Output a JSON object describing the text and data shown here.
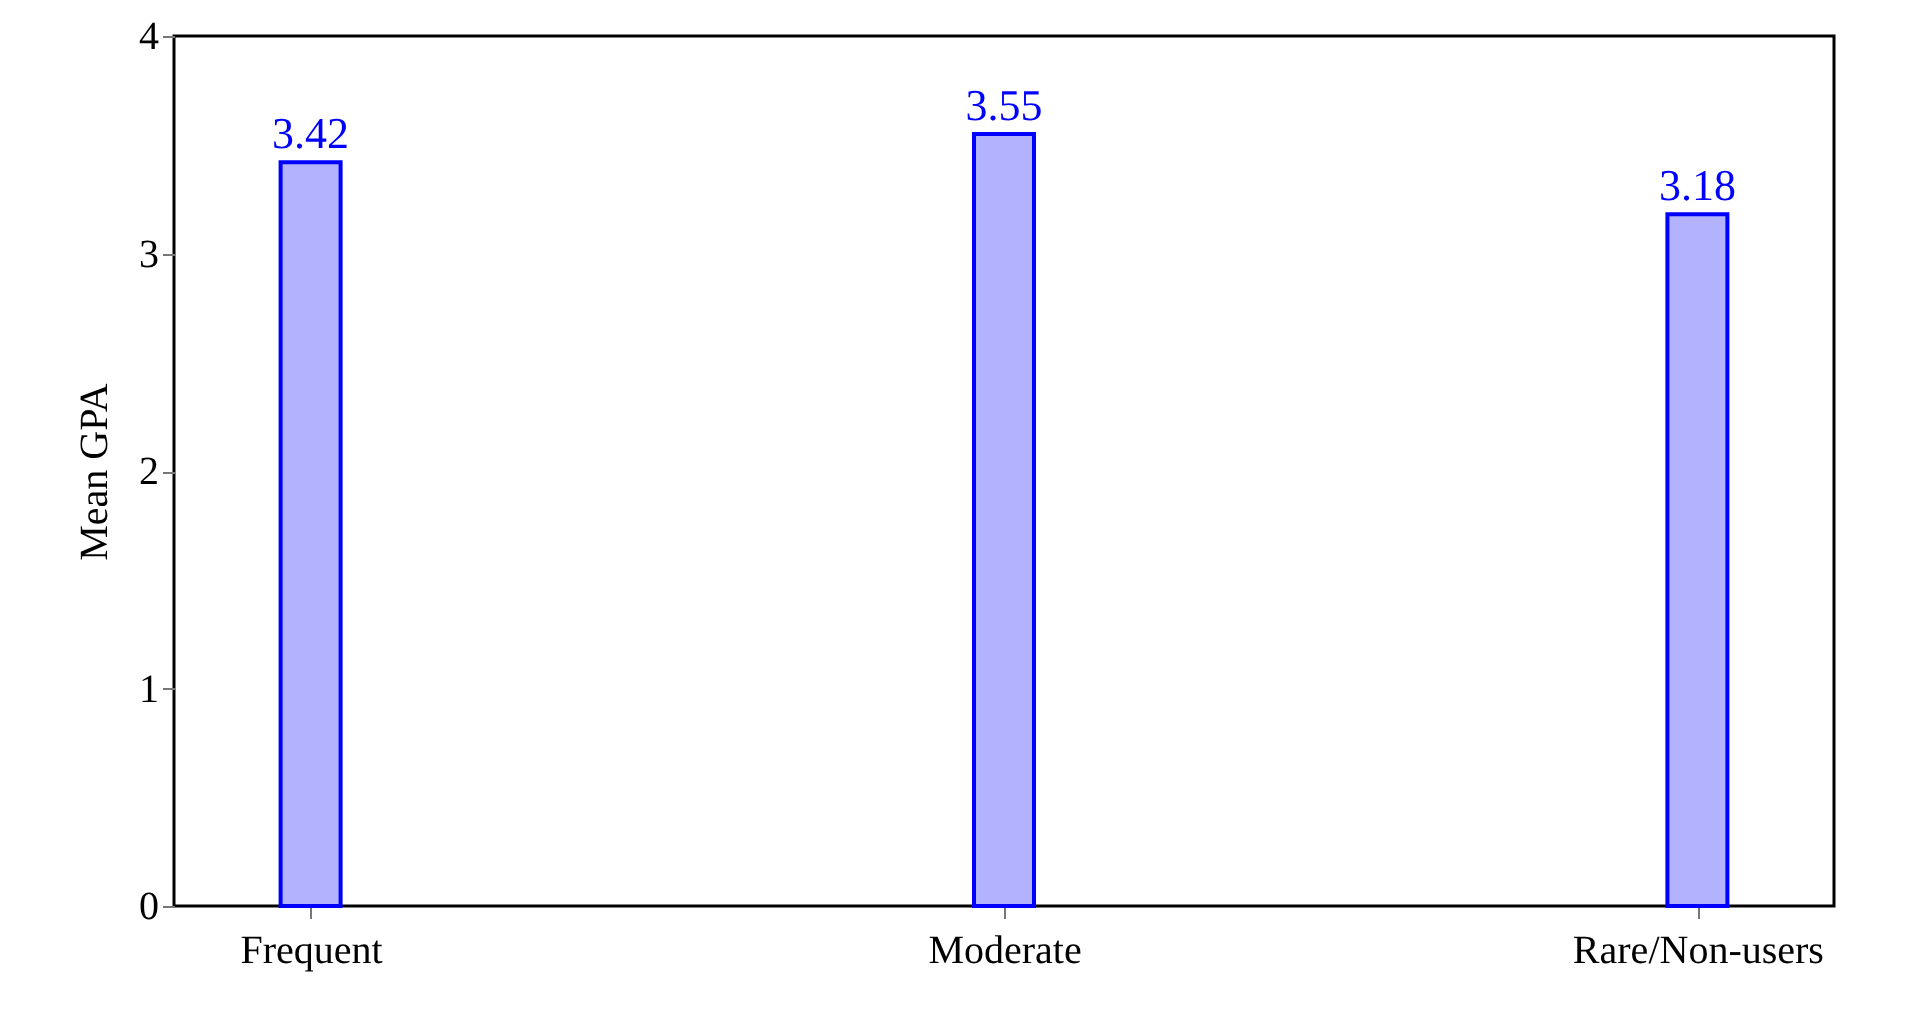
{
  "chart_data": {
    "type": "bar",
    "ylabel": "Mean GPA",
    "categories": [
      "Frequent",
      "Moderate",
      "Rare/Non-users"
    ],
    "series": [
      {
        "color": "#0000ff",
        "values": [
          3.42,
          3.55,
          3.18
        ]
      }
    ],
    "ylim": [
      0,
      4
    ],
    "yticks": [
      0,
      1,
      2,
      3,
      4
    ],
    "grid": false,
    "data_labels": true
  }
}
